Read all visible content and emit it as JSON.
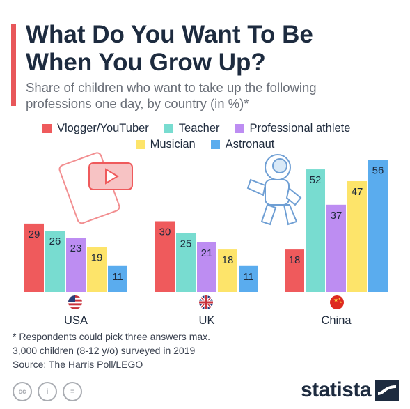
{
  "header": {
    "title_line1": "What Do You Want To Be",
    "title_line2": "When You Grow Up?",
    "subtitle_line1": "Share of children who want to take up the following",
    "subtitle_line2": "professions one day, by country (in %)*"
  },
  "colors": {
    "accent": "#e8575a",
    "series": [
      "#ef5a5c",
      "#78dcd0",
      "#bd8df2",
      "#fde46a",
      "#5aacee"
    ],
    "text": "#1d2b3f"
  },
  "chart_data": {
    "type": "bar",
    "categories": [
      "USA",
      "UK",
      "China"
    ],
    "series": [
      {
        "name": "Vlogger/YouTuber",
        "values": [
          29,
          30,
          18
        ]
      },
      {
        "name": "Teacher",
        "values": [
          26,
          25,
          52
        ]
      },
      {
        "name": "Professional athlete",
        "values": [
          23,
          21,
          37
        ]
      },
      {
        "name": "Musician",
        "values": [
          19,
          18,
          47
        ]
      },
      {
        "name": "Astronaut",
        "values": [
          11,
          11,
          56
        ]
      }
    ],
    "title": "What Do You Want To Be When You Grow Up?",
    "ylim": [
      0,
      60
    ],
    "grid": false,
    "legend_position": "top",
    "data_labels": true,
    "category_icons": [
      "us-flag-icon",
      "uk-flag-icon",
      "china-flag-icon"
    ],
    "decorations": [
      "youtube-icon",
      "astronaut-icon"
    ]
  },
  "footnote": {
    "line1": "* Respondents could pick three answers max.",
    "line2": "3,000 children (8-12 y/o) surveyed in 2019",
    "line3": "Source: The Harris Poll/LEGO"
  },
  "license_icons": {
    "cc": "cc",
    "by": "i",
    "nd": "="
  },
  "brand": {
    "name": "statista"
  }
}
